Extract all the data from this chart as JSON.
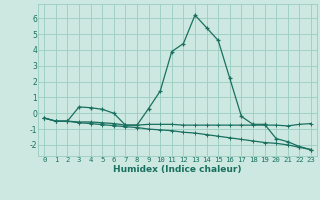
{
  "xlabel": "Humidex (Indice chaleur)",
  "background_color": "#cce8e0",
  "grid_color": "#99ccc0",
  "line_color": "#1a7060",
  "xlim": [
    -0.5,
    23.5
  ],
  "ylim": [
    -2.7,
    6.9
  ],
  "xticks": [
    0,
    1,
    2,
    3,
    4,
    5,
    6,
    7,
    8,
    9,
    10,
    11,
    12,
    13,
    14,
    15,
    16,
    17,
    18,
    19,
    20,
    21,
    22,
    23
  ],
  "yticks": [
    -2,
    -1,
    0,
    1,
    2,
    3,
    4,
    5,
    6
  ],
  "line1_x": [
    0,
    1,
    2,
    3,
    4,
    5,
    6,
    7,
    8,
    9,
    10,
    11,
    12,
    13,
    14,
    15,
    16,
    17,
    18,
    19,
    20,
    21,
    22,
    23
  ],
  "line1_y": [
    -0.3,
    -0.5,
    -0.5,
    0.4,
    0.35,
    0.25,
    0.0,
    -0.75,
    -0.75,
    0.3,
    1.4,
    3.9,
    4.4,
    6.2,
    5.4,
    4.6,
    2.2,
    -0.2,
    -0.7,
    -0.7,
    -1.6,
    -1.8,
    -2.1,
    -2.3
  ],
  "line2_x": [
    0,
    1,
    2,
    3,
    4,
    5,
    6,
    7,
    8,
    9,
    10,
    11,
    12,
    13,
    14,
    15,
    16,
    17,
    18,
    19,
    20,
    21,
    22,
    23
  ],
  "line2_y": [
    -0.3,
    -0.5,
    -0.5,
    -0.55,
    -0.55,
    -0.6,
    -0.65,
    -0.75,
    -0.75,
    -0.7,
    -0.7,
    -0.7,
    -0.75,
    -0.75,
    -0.75,
    -0.75,
    -0.75,
    -0.75,
    -0.75,
    -0.75,
    -0.75,
    -0.8,
    -0.7,
    -0.65
  ],
  "line3_x": [
    0,
    1,
    2,
    3,
    4,
    5,
    6,
    7,
    8,
    9,
    10,
    11,
    12,
    13,
    14,
    15,
    16,
    17,
    18,
    19,
    20,
    21,
    22,
    23
  ],
  "line3_y": [
    -0.3,
    -0.5,
    -0.5,
    -0.6,
    -0.65,
    -0.72,
    -0.78,
    -0.85,
    -0.9,
    -1.0,
    -1.05,
    -1.1,
    -1.2,
    -1.25,
    -1.35,
    -1.45,
    -1.55,
    -1.65,
    -1.75,
    -1.85,
    -1.9,
    -2.0,
    -2.15,
    -2.3
  ]
}
